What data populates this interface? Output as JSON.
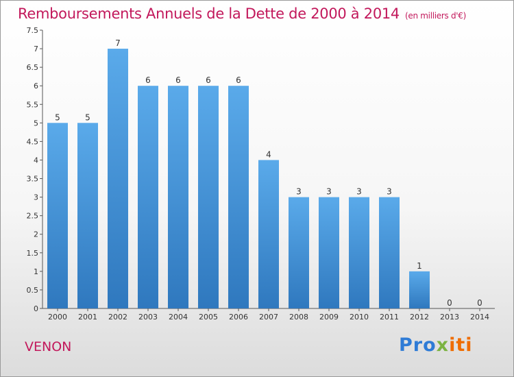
{
  "header": {
    "title": "Remboursements Annuels de la Dette de 2000 à 2014",
    "unit": "(en milliers d'€)"
  },
  "footer": {
    "commune": "VENON",
    "brand_parts": [
      "Pro",
      "x",
      "iti"
    ]
  },
  "colors": {
    "title": "#c2185b",
    "bar_top": "#5aaaea",
    "bar_bottom": "#2f78be"
  },
  "chart_data": {
    "type": "bar",
    "title": "Remboursements Annuels de la Dette de 2000 à 2014",
    "subtitle": "(en milliers d'€)",
    "xlabel": "",
    "ylabel": "",
    "categories": [
      "2000",
      "2001",
      "2002",
      "2003",
      "2004",
      "2005",
      "2006",
      "2007",
      "2008",
      "2009",
      "2010",
      "2011",
      "2012",
      "2013",
      "2014"
    ],
    "values": [
      5,
      5,
      7,
      6,
      6,
      6,
      6,
      4,
      3,
      3,
      3,
      3,
      1,
      0,
      0
    ],
    "data_labels": [
      "5",
      "5",
      "7",
      "6",
      "6",
      "6",
      "6",
      "4",
      "3",
      "3",
      "3",
      "3",
      "1",
      "0",
      "0"
    ],
    "ylim": [
      0,
      7.5
    ],
    "yticks": [
      0,
      0.5,
      1,
      1.5,
      2,
      2.5,
      3,
      3.5,
      4,
      4.5,
      5,
      5.5,
      6,
      6.5,
      7,
      7.5
    ],
    "ytick_labels": [
      "0",
      "0.5",
      "1",
      "1.5",
      "2",
      "2.5",
      "3",
      "3.5",
      "4",
      "4.5",
      "5",
      "5.5",
      "6",
      "6.5",
      "7",
      "7.5"
    ],
    "grid": false,
    "legend": "none"
  }
}
